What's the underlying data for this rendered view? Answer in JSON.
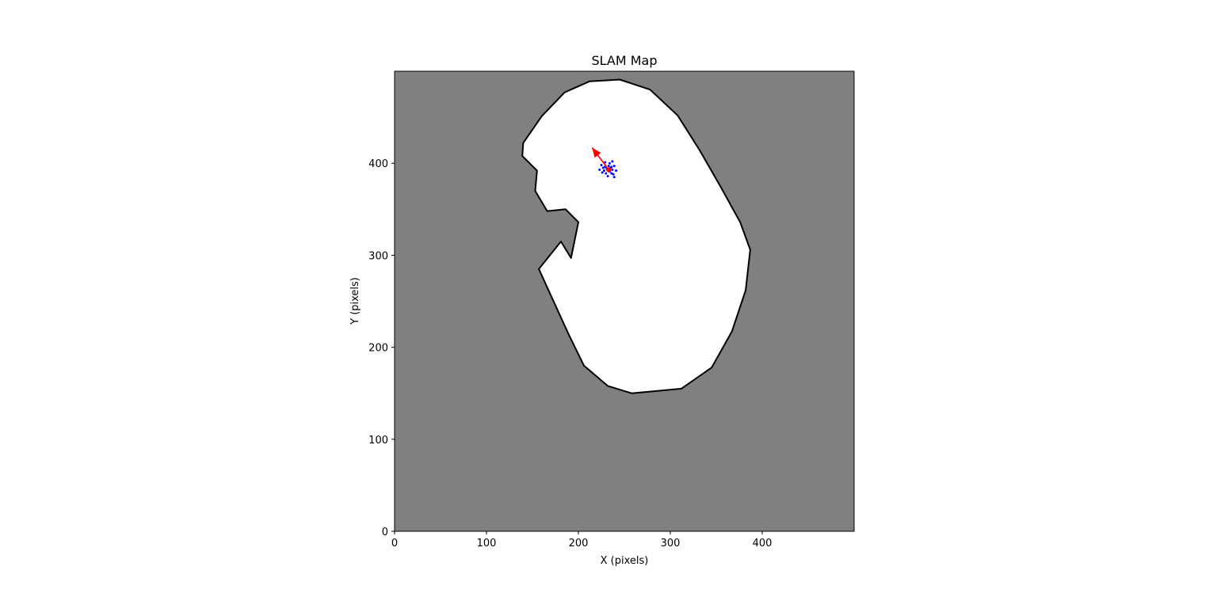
{
  "chart_data": {
    "type": "heatmap",
    "title": "SLAM Map",
    "xlabel": "X (pixels)",
    "ylabel": "Y (pixels)",
    "xlim": [
      0,
      500
    ],
    "ylim": [
      0,
      500
    ],
    "x_ticks": [
      0,
      100,
      200,
      300,
      400
    ],
    "y_ticks": [
      0,
      100,
      200,
      300,
      400
    ],
    "grid": false,
    "colors": {
      "unknown": "#808080",
      "free": "#ffffff",
      "occupied": "#000000",
      "particles": "#0000ff",
      "robot_pose": "#ff0000"
    },
    "explored_region_outline": [
      [
        192,
        297
      ],
      [
        200,
        336
      ],
      [
        186,
        350
      ],
      [
        166,
        348
      ],
      [
        153,
        370
      ],
      [
        155,
        392
      ],
      [
        139,
        408
      ],
      [
        140,
        422
      ],
      [
        160,
        451
      ],
      [
        185,
        477
      ],
      [
        212,
        489
      ],
      [
        245,
        491
      ],
      [
        278,
        480
      ],
      [
        308,
        452
      ],
      [
        332,
        414
      ],
      [
        355,
        374
      ],
      [
        376,
        336
      ],
      [
        387,
        306
      ],
      [
        382,
        262
      ],
      [
        367,
        217
      ],
      [
        345,
        178
      ],
      [
        312,
        155
      ],
      [
        258,
        150
      ],
      [
        232,
        158
      ],
      [
        206,
        180
      ],
      [
        189,
        215
      ],
      [
        157,
        285
      ],
      [
        181,
        315
      ]
    ],
    "particles": [
      [
        229,
        396
      ],
      [
        232,
        392
      ],
      [
        235,
        395
      ],
      [
        230,
        389
      ],
      [
        237,
        393
      ],
      [
        233,
        397
      ],
      [
        228,
        392
      ],
      [
        236,
        389
      ],
      [
        231,
        394
      ],
      [
        234,
        391
      ],
      [
        227,
        395
      ],
      [
        239,
        397
      ],
      [
        234,
        400
      ],
      [
        226,
        390
      ],
      [
        238,
        388
      ],
      [
        232,
        386
      ],
      [
        241,
        392
      ],
      [
        225,
        398
      ],
      [
        237,
        402
      ],
      [
        229,
        401
      ],
      [
        239,
        385
      ],
      [
        223,
        393
      ],
      [
        233,
        394
      ],
      [
        236,
        396
      ]
    ],
    "robot_pose": {
      "x": 233,
      "y": 393,
      "heading_deg": 127,
      "arrow_length": 30
    }
  }
}
